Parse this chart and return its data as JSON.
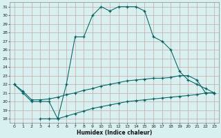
{
  "xlabel": "Humidex (Indice chaleur)",
  "bg_color": "#d8f0f0",
  "grid_color": "#b8d8d0",
  "line_color": "#006060",
  "xlim": [
    -0.5,
    23.5
  ],
  "ylim": [
    17.5,
    31.5
  ],
  "xticks": [
    0,
    1,
    2,
    3,
    4,
    5,
    6,
    7,
    8,
    9,
    10,
    11,
    12,
    13,
    14,
    15,
    16,
    17,
    18,
    19,
    20,
    21,
    22,
    23
  ],
  "yticks": [
    18,
    19,
    20,
    21,
    22,
    23,
    24,
    25,
    26,
    27,
    28,
    29,
    30,
    31
  ],
  "curve_max": {
    "x": [
      0,
      1,
      2,
      3,
      4,
      5,
      6,
      7,
      8,
      9,
      10,
      11,
      12,
      13,
      14,
      15,
      16,
      17,
      18,
      19,
      20,
      21,
      22,
      23
    ],
    "y": [
      22,
      21,
      20,
      20,
      20,
      18,
      22,
      27.5,
      27.5,
      30,
      31,
      30.5,
      31,
      31,
      31,
      30.5,
      27.5,
      27,
      26,
      23.5,
      22.5,
      22,
      21.5,
      21
    ]
  },
  "curve_mid": {
    "x": [
      0,
      1,
      2,
      3,
      4,
      5,
      6,
      7,
      8,
      9,
      10,
      11,
      12,
      13,
      14,
      15,
      16,
      17,
      18,
      19,
      20,
      21,
      22,
      23
    ],
    "y": [
      22,
      21.2,
      20.2,
      20.2,
      20.3,
      20.5,
      20.8,
      21.0,
      21.3,
      21.5,
      21.8,
      22.0,
      22.2,
      22.4,
      22.5,
      22.6,
      22.7,
      22.7,
      22.8,
      23.0,
      23.0,
      22.5,
      21.0,
      21.0
    ]
  },
  "curve_min": {
    "x": [
      3,
      4,
      5,
      6,
      7,
      8,
      9,
      10,
      11,
      12,
      13,
      14,
      15,
      16,
      17,
      18,
      19,
      20,
      21,
      22,
      23
    ],
    "y": [
      18,
      18,
      18,
      18.3,
      18.6,
      18.9,
      19.2,
      19.4,
      19.6,
      19.8,
      20.0,
      20.1,
      20.2,
      20.3,
      20.4,
      20.5,
      20.6,
      20.7,
      20.8,
      21.0,
      21.0
    ]
  }
}
